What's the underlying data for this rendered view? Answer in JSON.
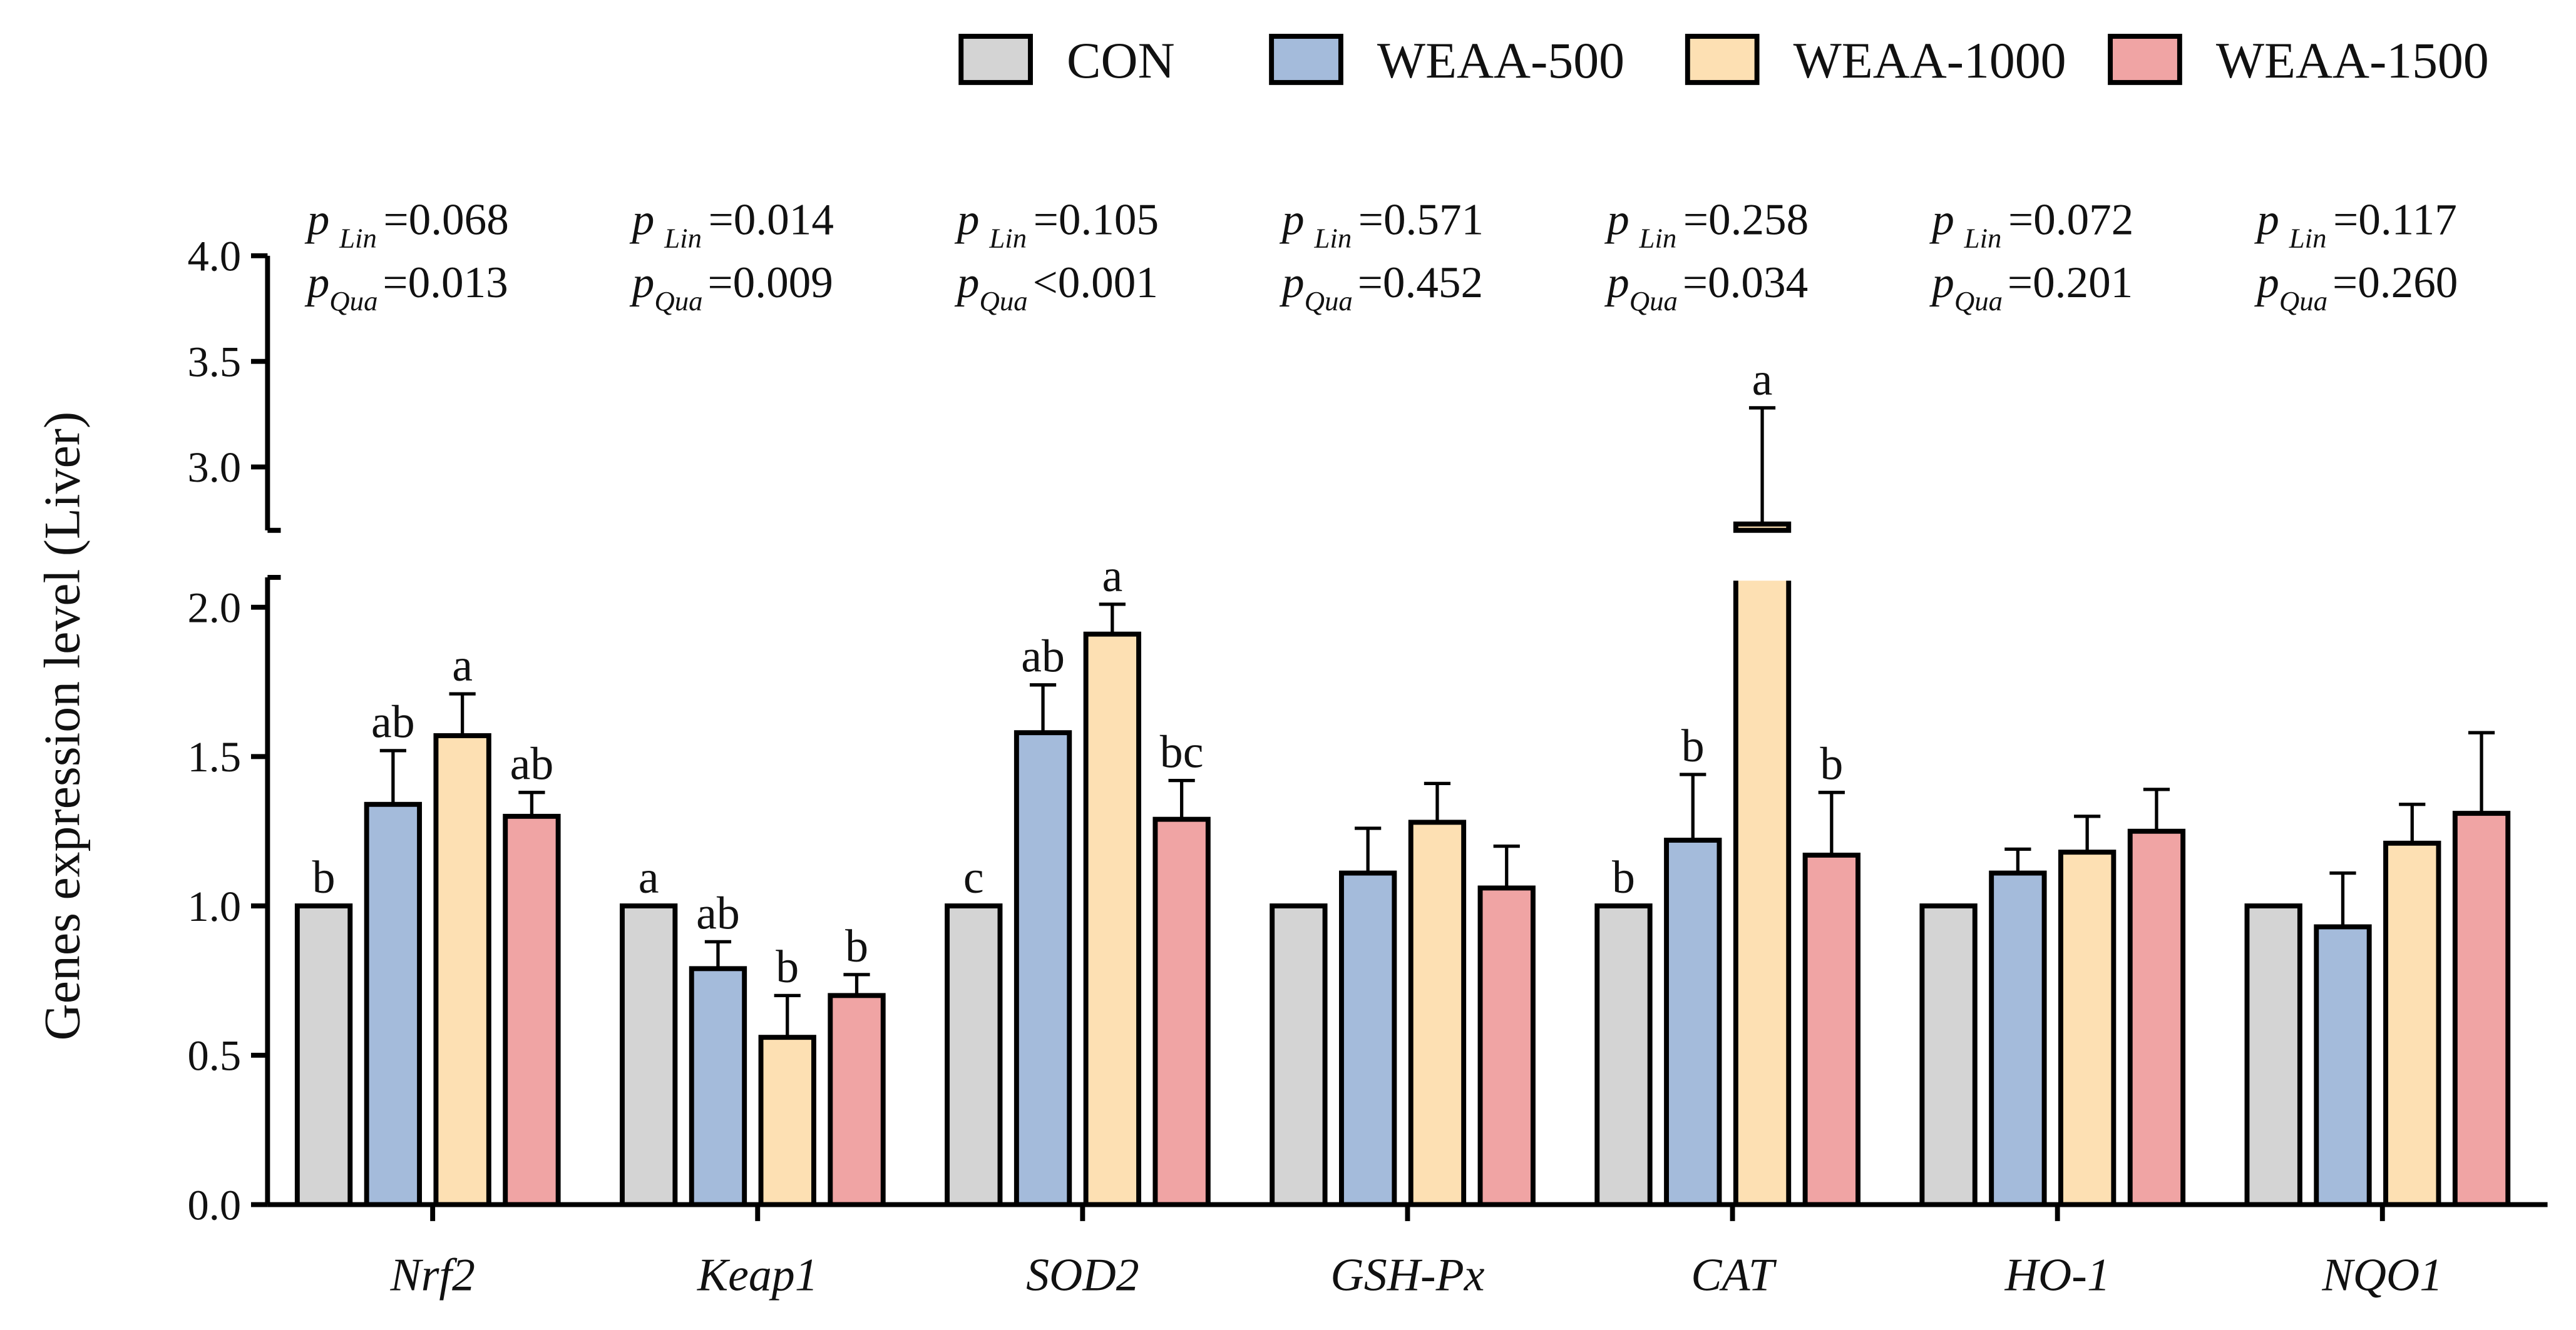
{
  "chart_data": {
    "type": "bar",
    "title": "",
    "xlabel": "",
    "ylabel": "Genes  expression level (Liver)",
    "ylim": [
      0,
      4.0
    ],
    "y_break": [
      2.1,
      2.7
    ],
    "yticks": [
      "0.0",
      "0.5",
      "1.0",
      "1.5",
      "2.0",
      "3.0",
      "3.5",
      "4.0"
    ],
    "ytick_values": [
      0,
      0.5,
      1.0,
      1.5,
      2.0,
      3.0,
      3.5,
      4.0
    ],
    "categories": [
      "Nrf2",
      "Keap1",
      "SOD2",
      "GSH-Px",
      "CAT",
      "HO-1",
      "NQO1"
    ],
    "legend_position": "top-right",
    "series": [
      {
        "name": "CON",
        "color": "#d4d4d4",
        "values": [
          1.0,
          1.0,
          1.0,
          1.0,
          1.0,
          1.0,
          1.0
        ],
        "error_top": [
          1.0,
          1.0,
          1.0,
          1.0,
          1.0,
          1.0,
          1.0
        ],
        "letters": [
          "b",
          "a",
          "c",
          "",
          "b",
          "",
          ""
        ]
      },
      {
        "name": "WEAA-500",
        "color": "#a4bbdb",
        "values": [
          1.34,
          0.79,
          1.58,
          1.11,
          1.22,
          1.11,
          0.93
        ],
        "error_top": [
          1.52,
          0.88,
          1.74,
          1.26,
          1.44,
          1.19,
          1.11
        ],
        "letters": [
          "ab",
          "ab",
          "ab",
          "",
          "b",
          "",
          ""
        ]
      },
      {
        "name": "WEAA-1000",
        "color": "#fde0b3",
        "values": [
          1.57,
          0.56,
          1.91,
          1.28,
          2.73,
          1.18,
          1.21
        ],
        "error_top": [
          1.71,
          0.7,
          2.01,
          1.41,
          3.28,
          1.3,
          1.34
        ],
        "letters": [
          "a",
          "b",
          "a",
          "",
          "a",
          "",
          ""
        ]
      },
      {
        "name": "WEAA-1500",
        "color": "#f0a4a4",
        "values": [
          1.3,
          0.7,
          1.29,
          1.06,
          1.17,
          1.25,
          1.31
        ],
        "error_top": [
          1.38,
          0.77,
          1.42,
          1.2,
          1.38,
          1.39,
          1.58
        ],
        "letters": [
          "ab",
          "b",
          "bc",
          "",
          "b",
          "",
          ""
        ]
      }
    ],
    "annotations": [
      {
        "lin": "=0.068",
        "qua": "=0.013"
      },
      {
        "lin": "=0.014",
        "qua": "=0.009"
      },
      {
        "lin": "=0.105",
        "qua": "<0.001"
      },
      {
        "lin": "=0.571",
        "qua": "=0.452"
      },
      {
        "lin": "=0.258",
        "qua": "=0.034"
      },
      {
        "lin": "=0.072",
        "qua": "=0.201"
      },
      {
        "lin": "=0.117",
        "qua": "=0.260"
      }
    ],
    "p_symbol": "p",
    "lin_sub": "Lin",
    "qua_sub": "Qua"
  }
}
